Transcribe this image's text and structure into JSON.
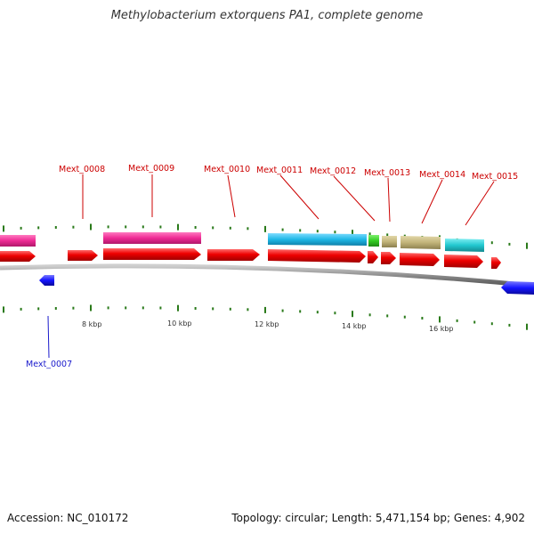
{
  "title": "Methylobacterium extorquens PA1, complete genome",
  "footer": {
    "accession": "Accession: NC_010172",
    "summary": "Topology: circular; Length: 5,471,154 bp; Genes: 4,902"
  },
  "colors": {
    "cds": "#ff0000",
    "label_red": "#cc0000",
    "label_blue": "#1a1acc",
    "reverse_gene": "#1414ff",
    "magenta": "#ee2a94",
    "cyan": "#1fb8e6",
    "green": "#33cc22",
    "khaki": "#c2b47a",
    "teal": "#22c8d0",
    "backbone": "#8a8a8a",
    "tick": "#2a7a1a"
  },
  "kbp_labels": [
    "8 kbp",
    "10 kbp",
    "12 kbp",
    "14 kbp",
    "16 kbp"
  ],
  "gene_labels": [
    {
      "text": "Mext_0008",
      "strand": "forward"
    },
    {
      "text": "Mext_0009",
      "strand": "forward"
    },
    {
      "text": "Mext_0010",
      "strand": "forward"
    },
    {
      "text": "Mext_0011",
      "strand": "forward"
    },
    {
      "text": "Mext_0012",
      "strand": "forward"
    },
    {
      "text": "Mext_0013",
      "strand": "forward"
    },
    {
      "text": "Mext_0014",
      "strand": "forward"
    },
    {
      "text": "Mext_0015",
      "strand": "forward"
    },
    {
      "text": "Mext_0007",
      "strand": "reverse"
    }
  ]
}
